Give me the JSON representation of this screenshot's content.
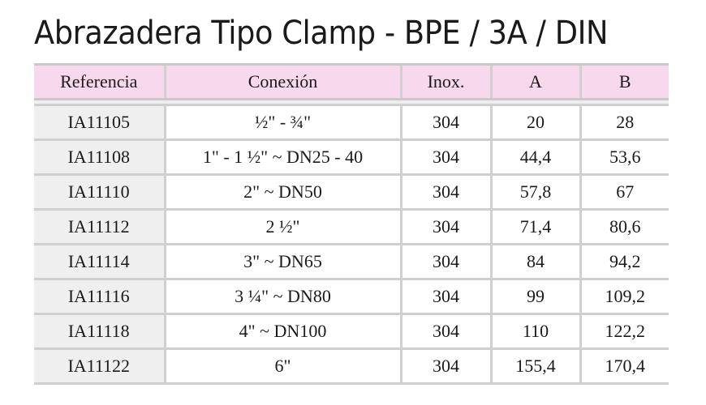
{
  "title": "Abrazadera Tipo Clamp - BPE / 3A / DIN",
  "colors": {
    "header_bg": "#f8d8ec",
    "first_column_bg": "#efefef",
    "grid_lines": "#cfcfcf"
  },
  "table": {
    "headers": [
      "Referencia",
      "Conexión",
      "Inox.",
      "A",
      "B"
    ],
    "rows": [
      [
        "IA11105",
        "½\" - ¾\"",
        "304",
        "20",
        "28"
      ],
      [
        "IA11108",
        "1\" - 1 ½\" ~ DN25 - 40",
        "304",
        "44,4",
        "53,6"
      ],
      [
        "IA11110",
        "2\" ~ DN50",
        "304",
        "57,8",
        "67"
      ],
      [
        "IA11112",
        "2 ½\"",
        "304",
        "71,4",
        "80,6"
      ],
      [
        "IA11114",
        "3\" ~ DN65",
        "304",
        "84",
        "94,2"
      ],
      [
        "IA11116",
        "3 ¼\" ~ DN80",
        "304",
        "99",
        "109,2"
      ],
      [
        "IA11118",
        "4\" ~ DN100",
        "304",
        "110",
        "122,2"
      ],
      [
        "IA11122",
        "6\"",
        "304",
        "155,4",
        "170,4"
      ]
    ]
  }
}
